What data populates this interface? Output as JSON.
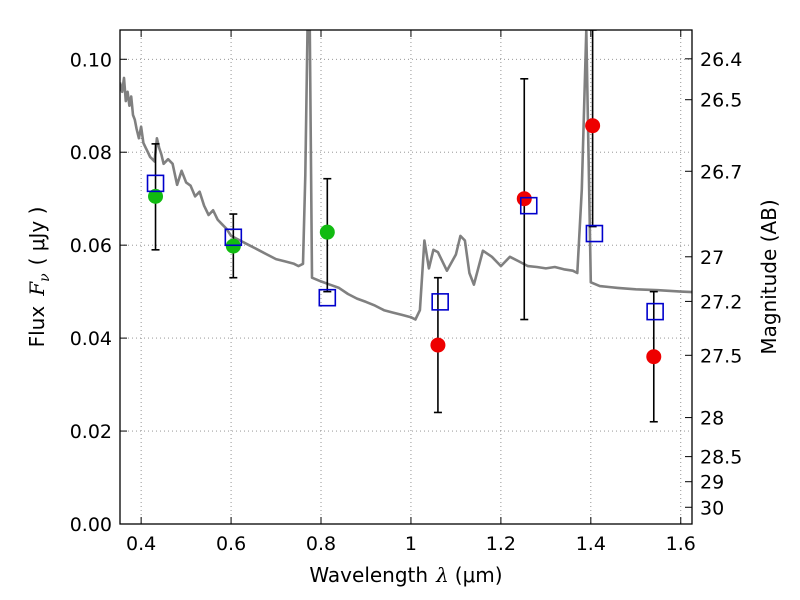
{
  "chart_data": {
    "type": "scatter",
    "xlabel": "Wavelength",
    "xlabel_symbol": "λ",
    "xlabel_unit": "(μm)",
    "ylabel": "Flux",
    "ylabel_symbol": "F",
    "ylabel_subscript": "ν",
    "ylabel_unit": "( μJy )",
    "y2label": "Magnitude (AB)",
    "xlim": [
      0.353,
      1.625
    ],
    "ylim": [
      0.0,
      0.1063
    ],
    "grid": true,
    "x_ticks": [
      0.4,
      0.6,
      0.8,
      1.0,
      1.2,
      1.4,
      1.6
    ],
    "x_tick_labels": [
      "0.4",
      "0.6",
      "0.8",
      "1",
      "1.2",
      "1.4",
      "1.6"
    ],
    "y_ticks": [
      0.0,
      0.02,
      0.04,
      0.06,
      0.08,
      0.1
    ],
    "y_tick_labels": [
      "0.00",
      "0.02",
      "0.04",
      "0.06",
      "0.08",
      "0.10"
    ],
    "y2_ticks": [
      {
        "label": "26.4",
        "flux": 0.1001
      },
      {
        "label": "26.5",
        "flux": 0.0913
      },
      {
        "label": "26.7",
        "flux": 0.0759
      },
      {
        "label": "27",
        "flux": 0.0575
      },
      {
        "label": "27.2",
        "flux": 0.0479
      },
      {
        "label": "27.5",
        "flux": 0.0363
      },
      {
        "label": "28",
        "flux": 0.0229
      },
      {
        "label": "28.5",
        "flux": 0.0145
      },
      {
        "label": "29",
        "flux": 0.0091
      },
      {
        "label": "30",
        "flux": 0.0036
      }
    ],
    "colors": {
      "template": "#808080",
      "model": "#0000cc",
      "green": "#11bb11",
      "red": "#ee0000",
      "errorbar": "#000000",
      "grid": "#888888"
    },
    "series": [
      {
        "kind": "line",
        "x": [
          0.353,
          0.358,
          0.362,
          0.366,
          0.37,
          0.374,
          0.378,
          0.382,
          0.386,
          0.39,
          0.395,
          0.4,
          0.405,
          0.41,
          0.415,
          0.42,
          0.425,
          0.43,
          0.435,
          0.44,
          0.445,
          0.45,
          0.46,
          0.47,
          0.48,
          0.49,
          0.5,
          0.51,
          0.52,
          0.53,
          0.54,
          0.55,
          0.56,
          0.57,
          0.58,
          0.59,
          0.6,
          0.62,
          0.64,
          0.66,
          0.68,
          0.7,
          0.72,
          0.74,
          0.75,
          0.76,
          0.765,
          0.77,
          0.775,
          0.78,
          0.8,
          0.82,
          0.84,
          0.86,
          0.88,
          0.9,
          0.92,
          0.94,
          0.96,
          0.98,
          1.0,
          1.01,
          1.02,
          1.03,
          1.04,
          1.05,
          1.06,
          1.08,
          1.1,
          1.11,
          1.12,
          1.13,
          1.14,
          1.16,
          1.18,
          1.2,
          1.22,
          1.24,
          1.26,
          1.28,
          1.3,
          1.32,
          1.34,
          1.36,
          1.37,
          1.38,
          1.39,
          1.4,
          1.42,
          1.44,
          1.46,
          1.5,
          1.55,
          1.6,
          1.625
        ],
        "y": [
          0.095,
          0.093,
          0.096,
          0.091,
          0.093,
          0.09,
          0.092,
          0.088,
          0.087,
          0.085,
          0.083,
          0.0855,
          0.082,
          0.081,
          0.08,
          0.079,
          0.0785,
          0.078,
          0.083,
          0.081,
          0.0795,
          0.0775,
          0.0785,
          0.0775,
          0.073,
          0.076,
          0.0735,
          0.0728,
          0.0705,
          0.0715,
          0.0685,
          0.0665,
          0.0675,
          0.0655,
          0.0645,
          0.0635,
          0.062,
          0.061,
          0.06,
          0.059,
          0.058,
          0.057,
          0.0565,
          0.056,
          0.0555,
          0.056,
          0.075,
          0.1063,
          0.1063,
          0.053,
          0.0522,
          0.0515,
          0.0508,
          0.0495,
          0.0485,
          0.0478,
          0.047,
          0.046,
          0.0455,
          0.045,
          0.0445,
          0.044,
          0.046,
          0.061,
          0.055,
          0.059,
          0.0585,
          0.0545,
          0.058,
          0.062,
          0.061,
          0.054,
          0.0515,
          0.0588,
          0.0575,
          0.0555,
          0.0575,
          0.0565,
          0.0555,
          0.0553,
          0.055,
          0.0553,
          0.0548,
          0.0545,
          0.054,
          0.072,
          0.1063,
          0.052,
          0.0512,
          0.051,
          0.0508,
          0.0505,
          0.0503,
          0.05,
          0.0499
        ]
      },
      {
        "kind": "errorbar",
        "x": [
          0.432,
          0.605,
          0.814,
          1.06,
          1.252,
          1.404,
          1.54
        ],
        "y": [
          0.0705,
          0.0598,
          0.0628,
          0.0385,
          0.07,
          0.0857,
          0.036
        ],
        "yerr_low": [
          0.059,
          0.053,
          0.05,
          0.024,
          0.044,
          0.064,
          0.022
        ],
        "yerr_high": [
          0.0818,
          0.0667,
          0.0743,
          0.053,
          0.0958,
          0.1063,
          0.05
        ]
      },
      {
        "kind": "points",
        "marker": "filled-circle",
        "color": "green",
        "x": [
          0.432,
          0.605,
          0.814
        ],
        "y": [
          0.0705,
          0.0598,
          0.0628
        ]
      },
      {
        "kind": "points",
        "marker": "filled-circle",
        "color": "red",
        "x": [
          1.06,
          1.252,
          1.404,
          1.54
        ],
        "y": [
          0.0385,
          0.07,
          0.0857,
          0.036
        ]
      },
      {
        "kind": "points",
        "marker": "open-square",
        "color": "model",
        "x": [
          0.432,
          0.605,
          0.814,
          1.065,
          1.262,
          1.408,
          1.543
        ],
        "y": [
          0.0733,
          0.0617,
          0.0487,
          0.0478,
          0.0685,
          0.0625,
          0.0457
        ]
      }
    ]
  }
}
